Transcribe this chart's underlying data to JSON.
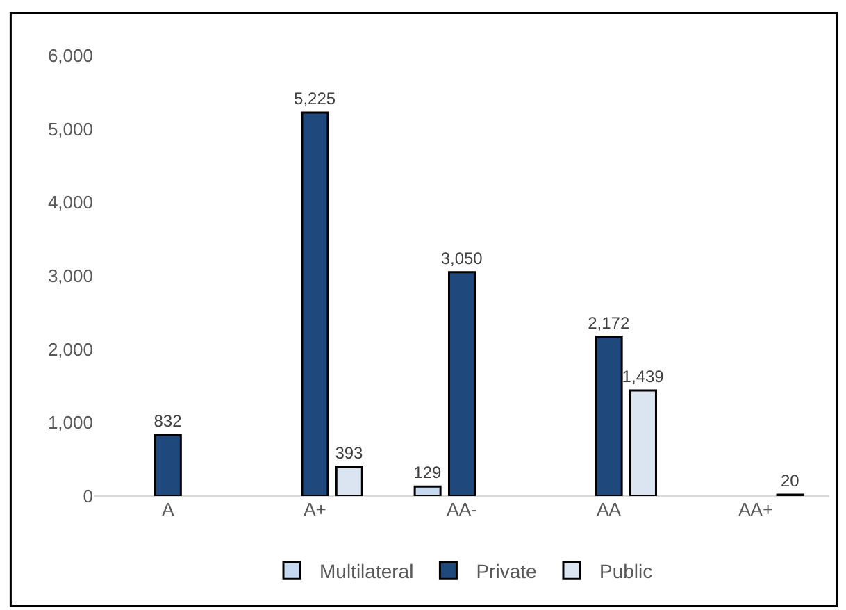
{
  "chart_data": {
    "type": "bar",
    "categories": [
      "A",
      "A+",
      "AA-",
      "AA",
      "AA+"
    ],
    "series": [
      {
        "name": "Multilateral",
        "color": "#c6d9f1",
        "values": [
          null,
          null,
          129,
          null,
          null
        ],
        "value_labels": [
          null,
          null,
          "129",
          null,
          null
        ]
      },
      {
        "name": "Private",
        "color": "#1f497d",
        "values": [
          832,
          5225,
          3050,
          2172,
          null
        ],
        "value_labels": [
          "832",
          "5,225",
          "3,050",
          "2,172",
          null
        ]
      },
      {
        "name": "Public",
        "color": "#dbe5f1",
        "values": [
          null,
          393,
          null,
          1439,
          20
        ],
        "value_labels": [
          null,
          "393",
          null,
          "1,439",
          "20"
        ]
      }
    ],
    "ylim": [
      0,
      6000
    ],
    "yticks": [
      0,
      {
        "value": 1000,
        "label": "1,000"
      },
      {
        "value": 2000,
        "label": "2,000"
      },
      {
        "value": 3000,
        "label": "3,000"
      },
      {
        "value": 4000,
        "label": "4,000"
      },
      {
        "value": 5000,
        "label": "5,000"
      },
      {
        "value": 6000,
        "label": "6,000"
      }
    ],
    "grid": false,
    "legend": "bottom"
  }
}
